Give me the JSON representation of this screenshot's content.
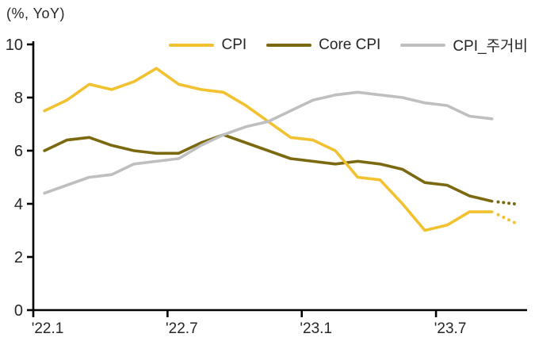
{
  "chart_data": {
    "type": "line",
    "unit_label": "(%, YoY)",
    "categories": [
      "'22.1",
      "'22.2",
      "'22.3",
      "'22.4",
      "'22.5",
      "'22.6",
      "'22.7",
      "'22.8",
      "'22.9",
      "'22.10",
      "'22.11",
      "'22.12",
      "'23.1",
      "'23.2",
      "'23.3",
      "'23.4",
      "'23.5",
      "'23.6",
      "'23.7",
      "'23.8",
      "'23.9",
      "'23.10"
    ],
    "x_tick_labels": [
      "'22.1",
      "'22.7",
      "'23.1",
      "'23.7"
    ],
    "x_tick_indices": [
      0,
      6,
      12,
      18
    ],
    "y_ticks": [
      0,
      2,
      4,
      6,
      8,
      10
    ],
    "ylim": [
      0,
      10
    ],
    "grid": false,
    "legend_position": "top",
    "axis_color": "#000000",
    "text_color": "#262626",
    "series": [
      {
        "name": "CPI",
        "color": "#F1C12F",
        "solid_points": 21,
        "values": [
          7.5,
          7.9,
          8.5,
          8.3,
          8.6,
          9.1,
          8.5,
          8.3,
          8.2,
          7.7,
          7.1,
          6.5,
          6.4,
          6.0,
          5.0,
          4.9,
          4.0,
          3.0,
          3.2,
          3.7,
          3.7,
          3.3
        ]
      },
      {
        "name": "Core CPI",
        "color": "#7A690F",
        "solid_points": 21,
        "values": [
          6.0,
          6.4,
          6.5,
          6.2,
          6.0,
          5.9,
          5.9,
          6.3,
          6.6,
          6.3,
          6.0,
          5.7,
          5.6,
          5.5,
          5.6,
          5.5,
          5.3,
          4.8,
          4.7,
          4.3,
          4.1,
          4.0
        ]
      },
      {
        "name": "CPI_주거비",
        "color": "#BFBFBF",
        "solid_points": 21,
        "values": [
          4.4,
          4.7,
          5.0,
          5.1,
          5.5,
          5.6,
          5.7,
          6.2,
          6.6,
          6.9,
          7.1,
          7.5,
          7.9,
          8.1,
          8.2,
          8.1,
          8.0,
          7.8,
          7.7,
          7.3,
          7.2
        ]
      }
    ]
  }
}
